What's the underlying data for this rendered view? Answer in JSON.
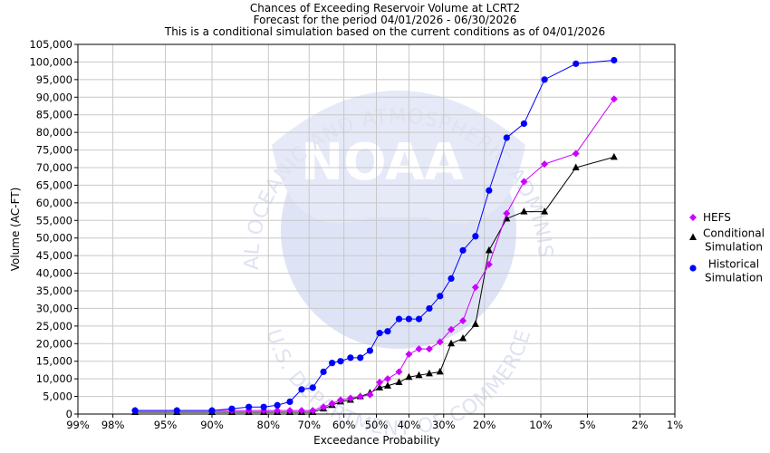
{
  "chart_data": {
    "type": "line",
    "title_lines": [
      "Chances of Exceeding Reservoir Volume at LCRT2",
      "Forecast for the period 04/01/2026 - 06/30/2026",
      "This is a conditional simulation based on the current conditions as of 04/01/2026"
    ],
    "xlabel": "Exceedance Probability",
    "ylabel": "Volume (AC-FT)",
    "x_scale": "normal-probability",
    "x_ticks": [
      {
        "p": 99,
        "label": "99%"
      },
      {
        "p": 98,
        "label": "98%"
      },
      {
        "p": 95,
        "label": "95%"
      },
      {
        "p": 90,
        "label": "90%"
      },
      {
        "p": 80,
        "label": "80%"
      },
      {
        "p": 70,
        "label": "70%"
      },
      {
        "p": 60,
        "label": "60%"
      },
      {
        "p": 50,
        "label": "50%"
      },
      {
        "p": 40,
        "label": "40%"
      },
      {
        "p": 30,
        "label": "30%"
      },
      {
        "p": 20,
        "label": "20%"
      },
      {
        "p": 10,
        "label": "10%"
      },
      {
        "p": 5,
        "label": "5%"
      },
      {
        "p": 2,
        "label": "2%"
      },
      {
        "p": 1,
        "label": "1%"
      }
    ],
    "ylim": [
      0,
      105000
    ],
    "y_ticks": [
      {
        "v": 0,
        "label": "0"
      },
      {
        "v": 5000,
        "label": "5,000"
      },
      {
        "v": 10000,
        "label": "10,000"
      },
      {
        "v": 15000,
        "label": "15,000"
      },
      {
        "v": 20000,
        "label": "20,000"
      },
      {
        "v": 25000,
        "label": "25,000"
      },
      {
        "v": 30000,
        "label": "30,000"
      },
      {
        "v": 35000,
        "label": "35,000"
      },
      {
        "v": 40000,
        "label": "40,000"
      },
      {
        "v": 45000,
        "label": "45,000"
      },
      {
        "v": 50000,
        "label": "50,000"
      },
      {
        "v": 55000,
        "label": "55,000"
      },
      {
        "v": 60000,
        "label": "60,000"
      },
      {
        "v": 65000,
        "label": "65,000"
      },
      {
        "v": 70000,
        "label": "70,000"
      },
      {
        "v": 75000,
        "label": "75,000"
      },
      {
        "v": 80000,
        "label": "80,000"
      },
      {
        "v": 85000,
        "label": "85,000"
      },
      {
        "v": 90000,
        "label": "90,000"
      },
      {
        "v": 95000,
        "label": "95,000"
      },
      {
        "v": 100000,
        "label": "100,000"
      },
      {
        "v": 105000,
        "label": "105,000"
      }
    ],
    "grid": true,
    "legend_position": "right",
    "series": [
      {
        "name": "HEFS",
        "color": "#cc00ff",
        "marker": "diamond",
        "x": [
          97,
          94,
          90,
          87,
          84,
          81,
          78,
          75,
          72,
          69,
          66,
          63.5,
          61,
          58,
          55,
          52,
          49,
          46.5,
          43,
          40,
          37,
          34,
          31,
          28,
          25,
          22,
          19,
          15.5,
          12.5,
          9.5,
          6,
          3.2
        ],
        "y": [
          1000,
          1000,
          1000,
          1000,
          1000,
          1000,
          1000,
          1000,
          1000,
          1000,
          2000,
          3000,
          4000,
          4500,
          5000,
          5500,
          9000,
          10000,
          12000,
          17000,
          18500,
          18500,
          20500,
          24000,
          26500,
          36000,
          42500,
          57000,
          66000,
          71000,
          74000,
          89500
        ]
      },
      {
        "name": "Conditional Simulation",
        "color": "#000000",
        "marker": "triangle",
        "x": [
          97,
          94,
          90,
          87,
          84,
          81,
          78,
          75,
          72,
          69,
          66,
          63.5,
          61,
          58,
          55,
          52,
          49,
          46.5,
          43,
          40,
          37,
          34,
          31,
          28,
          25,
          22,
          19,
          15.5,
          12.5,
          9.5,
          6,
          3.2
        ],
        "y": [
          500,
          500,
          500,
          500,
          500,
          500,
          500,
          500,
          500,
          500,
          1500,
          2500,
          3500,
          4000,
          5000,
          6000,
          7500,
          8000,
          9000,
          10500,
          11000,
          11500,
          12000,
          20000,
          21500,
          25500,
          46500,
          55500,
          57500,
          57500,
          70000,
          73000
        ]
      },
      {
        "name": "Historical Simulation",
        "color": "#0000ff",
        "marker": "circle",
        "x": [
          97,
          94,
          90,
          87,
          84,
          81,
          78,
          75,
          72,
          69,
          66,
          63.5,
          61,
          58,
          55,
          52,
          49,
          46.5,
          43,
          40,
          37,
          34,
          31,
          28,
          25,
          22,
          19,
          15.5,
          12.5,
          9.5,
          6,
          3.2
        ],
        "y": [
          1000,
          1000,
          1000,
          1500,
          2000,
          2000,
          2500,
          3500,
          7000,
          7500,
          12000,
          14500,
          15000,
          16000,
          16000,
          18000,
          23000,
          23500,
          27000,
          27000,
          27000,
          30000,
          33500,
          38500,
          46500,
          50500,
          63500,
          78500,
          82500,
          95000,
          99500,
          100500
        ]
      }
    ]
  },
  "legend": {
    "items": [
      {
        "lines": [
          "HEFS"
        ]
      },
      {
        "lines": [
          "Conditional",
          "Simulation"
        ]
      },
      {
        "lines": [
          "Historical",
          "Simulation"
        ]
      }
    ]
  },
  "watermark": {
    "top_arc": "NATIONAL OCEANIC AND ATMOSPHERIC ADMINISTRATION",
    "bottom_arc": "U.S. DEPARTMENT OF COMMERCE",
    "center": "NOAA"
  }
}
